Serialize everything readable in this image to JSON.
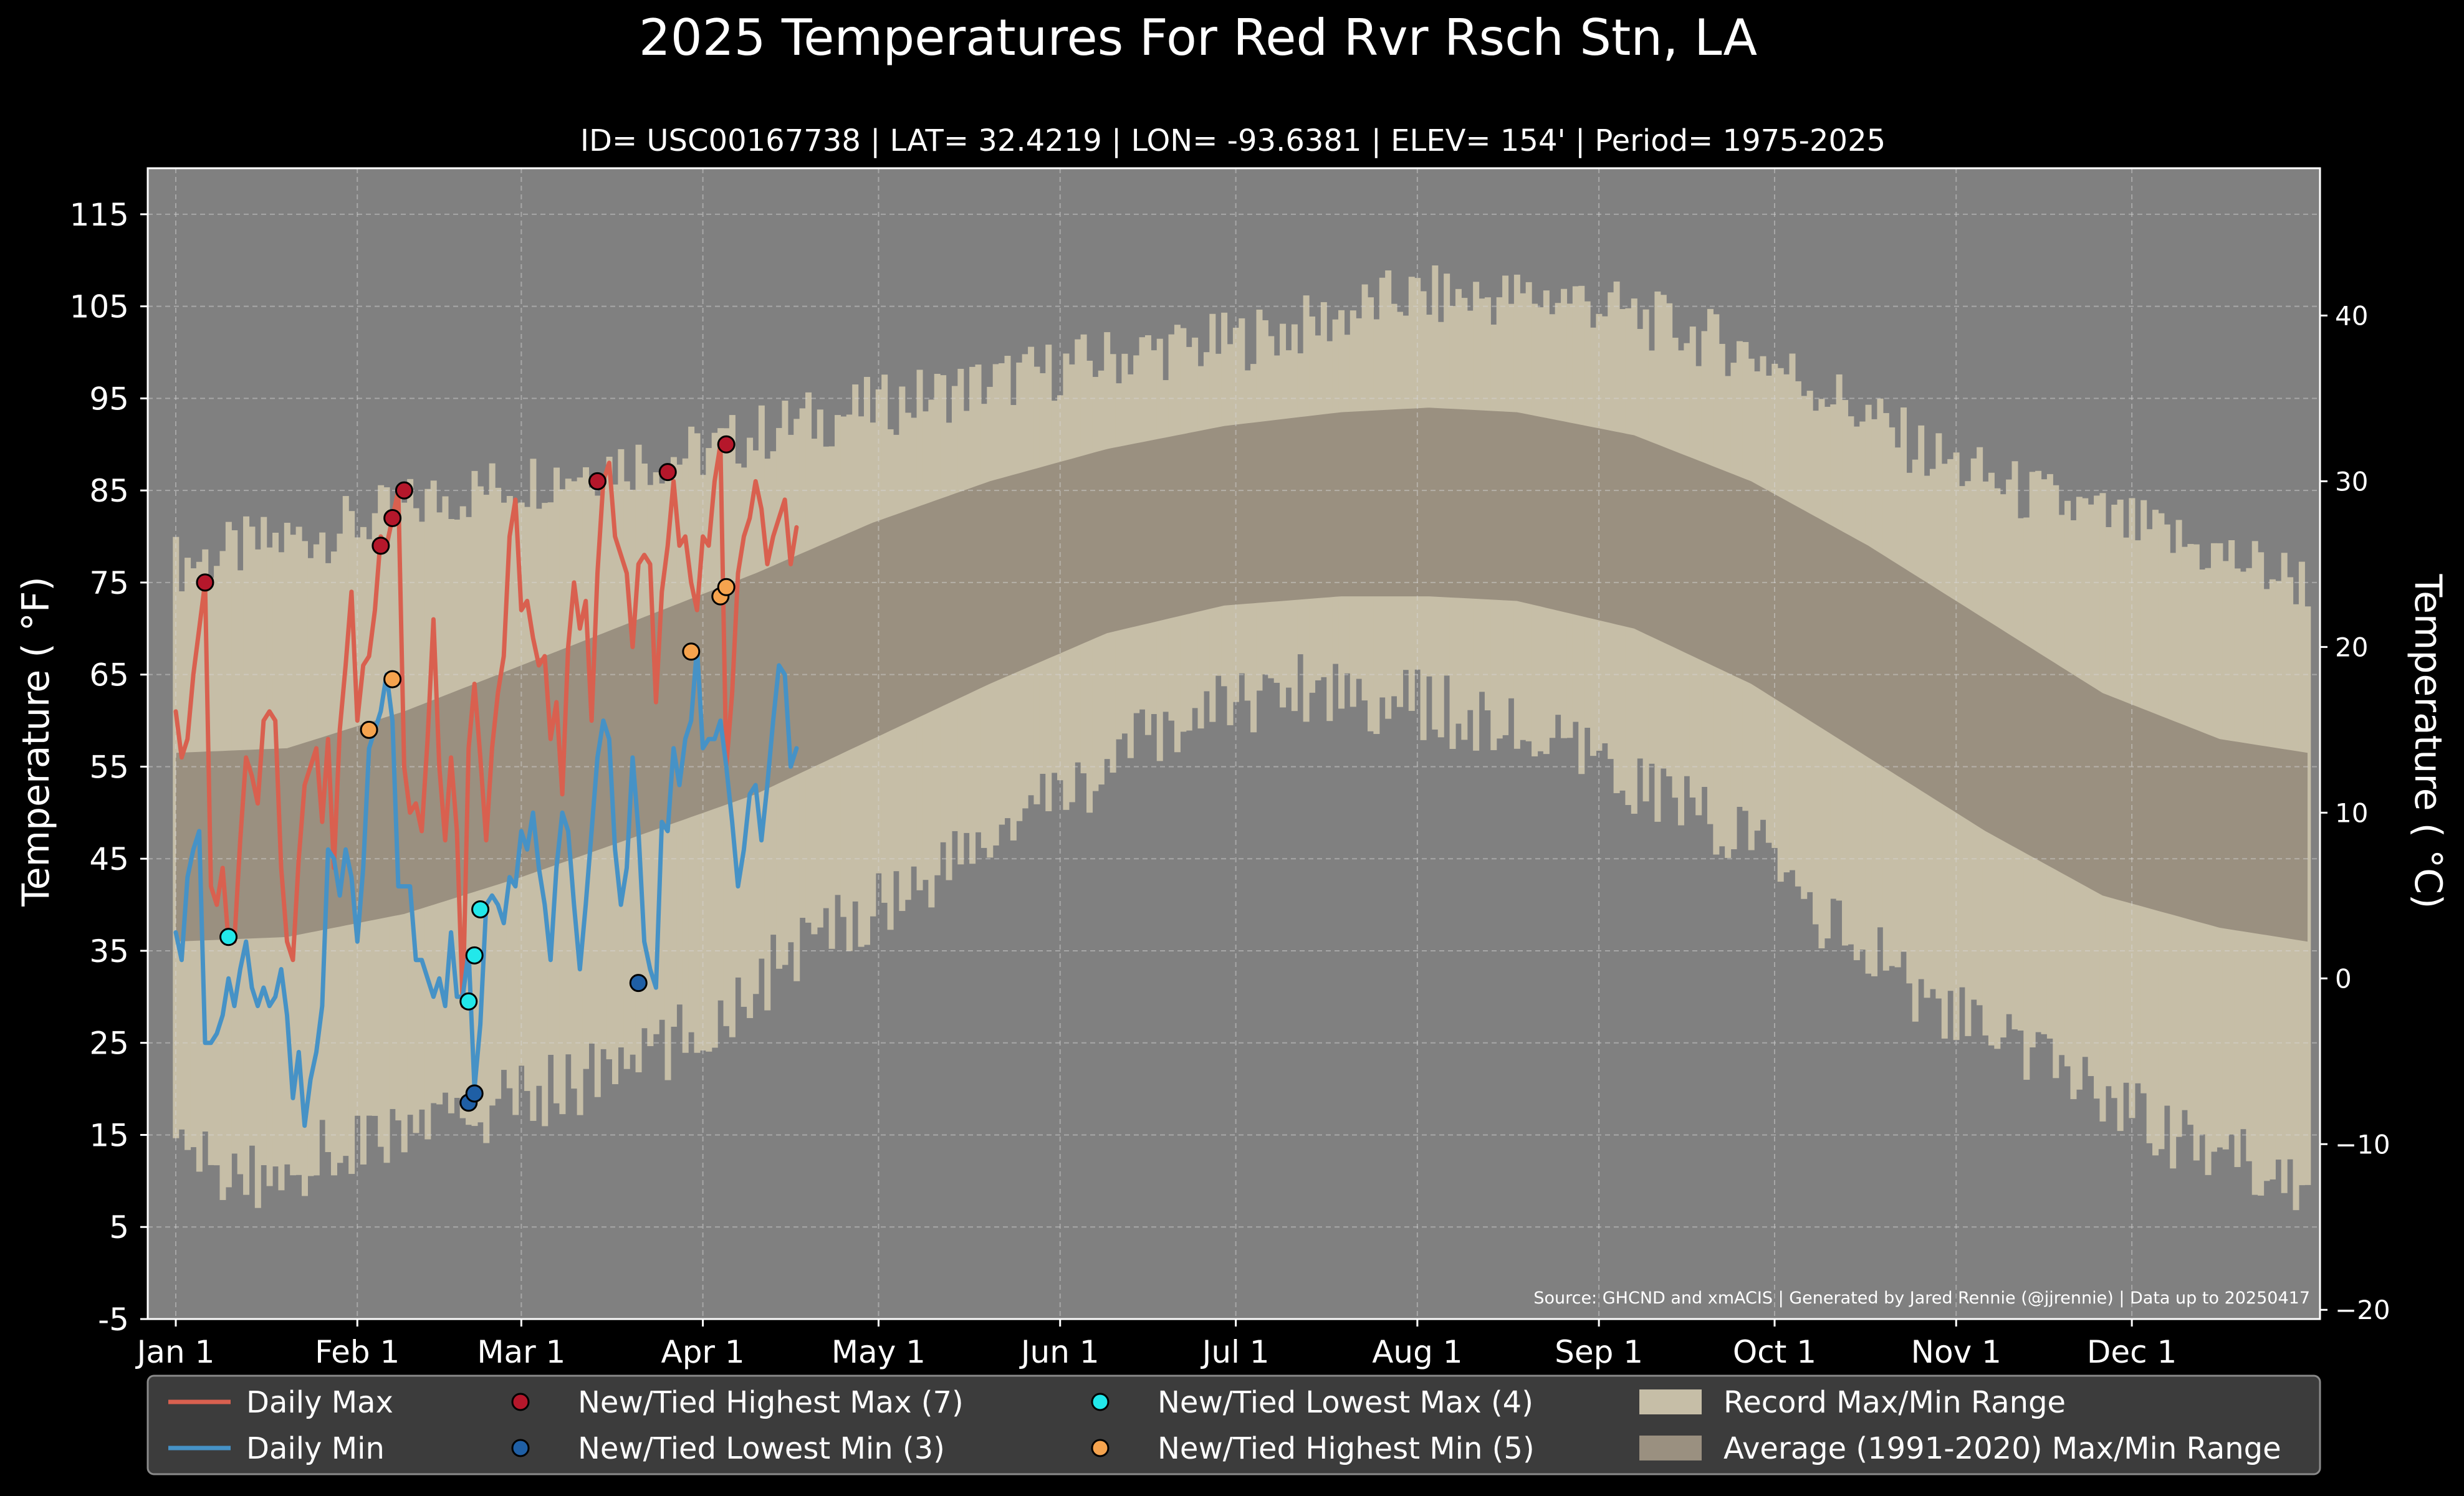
{
  "chart_data": {
    "type": "line",
    "title": "2025 Temperatures For Red Rvr Rsch Stn, LA",
    "subtitle": "ID= USC00167738 | LAT= 32.4219 | LON= -93.6381 | ELEV= 154' | Period= 1975-2025",
    "ylabel": "Temperature ( °F)",
    "ylabel_right": "Temperature ( °C)",
    "source": "Source: GHCND and xmACIS | Generated by Jared Rennie (@jjrennie) | Data up to 20250417",
    "ylim": [
      -5,
      120
    ],
    "y_ticks": [
      -5,
      5,
      15,
      25,
      35,
      45,
      55,
      65,
      75,
      85,
      95,
      105,
      115
    ],
    "y_ticks_right": [
      -20,
      -10,
      0,
      10,
      20,
      30,
      40
    ],
    "y_ticks_right_labels": [
      "−20",
      "−10",
      "0",
      "10",
      "20",
      "30",
      "40"
    ],
    "x_ticks": [
      {
        "doy": 1,
        "label": "Jan 1"
      },
      {
        "doy": 32,
        "label": "Feb 1"
      },
      {
        "doy": 60,
        "label": "Mar 1"
      },
      {
        "doy": 91,
        "label": "Apr 1"
      },
      {
        "doy": 121,
        "label": "May 1"
      },
      {
        "doy": 152,
        "label": "Jun 1"
      },
      {
        "doy": 182,
        "label": "Jul 1"
      },
      {
        "doy": 213,
        "label": "Aug 1"
      },
      {
        "doy": 244,
        "label": "Sep 1"
      },
      {
        "doy": 274,
        "label": "Oct 1"
      },
      {
        "doy": 305,
        "label": "Nov 1"
      },
      {
        "doy": 335,
        "label": "Dec 1"
      }
    ],
    "grid": true,
    "legend_position": "bottom",
    "colors": {
      "background": "#808080",
      "record_band": "#c6bea7",
      "normal_band": "#9a9080",
      "daily_max": "#d9604f",
      "daily_min": "#4692c6",
      "highest_max": "#b5172b",
      "lowest_min": "#1f5fa5",
      "lowest_max": "#22e8ea",
      "highest_min": "#f5a34e"
    },
    "record_range": {
      "doy": [
        1,
        15,
        30,
        45,
        60,
        75,
        90,
        105,
        120,
        135,
        150,
        165,
        180,
        195,
        210,
        225,
        240,
        255,
        270,
        285,
        300,
        315,
        330,
        345,
        365
      ],
      "high": [
        77,
        79,
        81,
        84,
        86,
        88,
        89,
        92,
        94,
        96,
        98,
        100,
        101,
        103,
        106,
        106,
        106,
        103,
        100,
        95,
        89,
        85,
        82,
        79,
        75
      ],
      "low": [
        13,
        10,
        14,
        16,
        19,
        22,
        26,
        34,
        40,
        45,
        51,
        57,
        62,
        64,
        62,
        60,
        56,
        52,
        47,
        37,
        30,
        24,
        20,
        14,
        10
      ]
    },
    "normal_range": {
      "doy": [
        1,
        20,
        40,
        60,
        80,
        100,
        120,
        140,
        160,
        180,
        200,
        215,
        230,
        250,
        270,
        290,
        310,
        330,
        350,
        365
      ],
      "high": [
        56.5,
        57,
        61,
        66,
        71,
        76,
        81.5,
        86,
        89.5,
        92,
        93.5,
        94,
        93.5,
        91,
        86,
        79,
        71,
        63,
        58,
        56.5
      ],
      "low": [
        36,
        36.5,
        39,
        43,
        47.5,
        52,
        58,
        64,
        69.5,
        72.5,
        73.5,
        73.5,
        73,
        70,
        64,
        56,
        48,
        41,
        37.5,
        36
      ]
    },
    "series": [
      {
        "name": "Daily Max",
        "doy": [
          1,
          2,
          3,
          4,
          5,
          6,
          7,
          8,
          9,
          10,
          11,
          12,
          13,
          14,
          15,
          16,
          17,
          18,
          19,
          20,
          21,
          22,
          23,
          24,
          25,
          26,
          27,
          28,
          29,
          30,
          31,
          32,
          33,
          34,
          35,
          36,
          37,
          38,
          39,
          40,
          41,
          42,
          43,
          44,
          45,
          46,
          47,
          48,
          49,
          50,
          51,
          52,
          53,
          54,
          55,
          56,
          57,
          58,
          59,
          60,
          61,
          62,
          63,
          64,
          65,
          66,
          67,
          68,
          69,
          70,
          71,
          72,
          73,
          74,
          75,
          76,
          77,
          78,
          79,
          80,
          81,
          82,
          83,
          84,
          85,
          86,
          87,
          88,
          89,
          90,
          91,
          92,
          93,
          94,
          95,
          96,
          97,
          98,
          99,
          100,
          101,
          102,
          103,
          104,
          105,
          106,
          107
        ],
        "values": [
          61,
          56,
          58,
          65,
          70,
          75,
          42,
          40,
          44,
          36,
          36,
          47,
          56,
          54,
          51,
          60,
          61,
          60,
          44,
          36,
          34,
          45,
          53,
          55,
          57,
          49,
          58,
          44,
          59,
          66,
          74,
          60,
          66,
          67,
          72,
          80,
          79,
          82,
          85,
          55,
          50,
          51,
          48,
          58,
          71,
          55,
          47,
          56,
          48,
          29,
          57,
          64,
          56,
          47,
          57,
          63,
          67,
          80,
          84,
          72,
          73,
          69,
          66,
          67,
          58,
          62,
          52,
          68,
          75,
          70,
          73,
          60,
          76,
          86,
          88,
          80,
          78,
          76,
          68,
          77,
          78,
          77,
          62,
          74,
          79,
          86,
          79,
          80,
          75,
          72,
          80,
          79,
          86,
          90,
          55,
          63,
          76,
          80,
          82,
          86,
          83,
          77,
          80,
          82,
          84,
          77,
          81
        ]
      },
      {
        "name": "Daily Min",
        "doy": [
          1,
          2,
          3,
          4,
          5,
          6,
          7,
          8,
          9,
          10,
          11,
          12,
          13,
          14,
          15,
          16,
          17,
          18,
          19,
          20,
          21,
          22,
          23,
          24,
          25,
          26,
          27,
          28,
          29,
          30,
          31,
          32,
          33,
          34,
          35,
          36,
          37,
          38,
          39,
          40,
          41,
          42,
          43,
          44,
          45,
          46,
          47,
          48,
          49,
          50,
          51,
          52,
          53,
          54,
          55,
          56,
          57,
          58,
          59,
          60,
          61,
          62,
          63,
          64,
          65,
          66,
          67,
          68,
          69,
          70,
          71,
          72,
          73,
          74,
          75,
          76,
          77,
          78,
          79,
          80,
          81,
          82,
          83,
          84,
          85,
          86,
          87,
          88,
          89,
          90,
          91,
          92,
          93,
          94,
          95,
          96,
          97,
          98,
          99,
          100,
          101,
          102,
          103,
          104,
          105,
          106,
          107
        ],
        "values": [
          37,
          34,
          43,
          46,
          48,
          25,
          25,
          26,
          28,
          32,
          29,
          33,
          36,
          31,
          29,
          31,
          29,
          30,
          33,
          28,
          19,
          24,
          16,
          21,
          24,
          29,
          46,
          45,
          41,
          46,
          43,
          36,
          44,
          57,
          59,
          61,
          65,
          60,
          42,
          42,
          42,
          34,
          34,
          32,
          30,
          32,
          29,
          37,
          30,
          30,
          35,
          20,
          27,
          40,
          41,
          40,
          38,
          43,
          42,
          48,
          46,
          50,
          44,
          40,
          34,
          44,
          50,
          48,
          40,
          33,
          40,
          48,
          56,
          60,
          58,
          46,
          40,
          44,
          56,
          48,
          36,
          33,
          31,
          49,
          48,
          57,
          53,
          58,
          60,
          68,
          57,
          58,
          58,
          60,
          55,
          49,
          42,
          46,
          52,
          53,
          47,
          53,
          60,
          66,
          65,
          55,
          57
        ]
      }
    ],
    "markers": [
      {
        "name": "New/Tied Highest Max (7)",
        "points": [
          [
            6,
            75
          ],
          [
            36,
            79
          ],
          [
            38,
            82
          ],
          [
            40,
            85
          ],
          [
            73,
            86
          ],
          [
            85,
            87
          ],
          [
            95,
            90
          ]
        ]
      },
      {
        "name": "New/Tied Lowest Min (3)",
        "points": [
          [
            51,
            18.5
          ],
          [
            52,
            19.5
          ],
          [
            80,
            31.5
          ]
        ]
      },
      {
        "name": "New/Tied Lowest Max (4)",
        "points": [
          [
            10,
            36.5
          ],
          [
            51,
            29.5
          ],
          [
            52,
            34.5
          ],
          [
            53,
            39.5
          ]
        ]
      },
      {
        "name": "New/Tied Highest Min (5)",
        "points": [
          [
            34,
            59
          ],
          [
            38,
            64.5
          ],
          [
            89,
            67.5
          ],
          [
            94,
            73.5
          ],
          [
            95,
            74.5
          ]
        ]
      }
    ],
    "legend": [
      {
        "label": "Daily Max",
        "kind": "line",
        "color": "#d9604f"
      },
      {
        "label": "Daily Min",
        "kind": "line",
        "color": "#4692c6"
      },
      {
        "label": "New/Tied Highest Max (7)",
        "kind": "dot",
        "color": "#b5172b"
      },
      {
        "label": "New/Tied Lowest Min (3)",
        "kind": "dot",
        "color": "#1f5fa5"
      },
      {
        "label": "New/Tied Lowest Max (4)",
        "kind": "dot",
        "color": "#22e8ea"
      },
      {
        "label": "New/Tied Highest Min (5)",
        "kind": "dot",
        "color": "#f5a34e"
      },
      {
        "label": "Record Max/Min Range",
        "kind": "box",
        "color": "#c6bea7"
      },
      {
        "label": "Average (1991-2020) Max/Min Range",
        "kind": "box",
        "color": "#9a9080"
      }
    ]
  }
}
